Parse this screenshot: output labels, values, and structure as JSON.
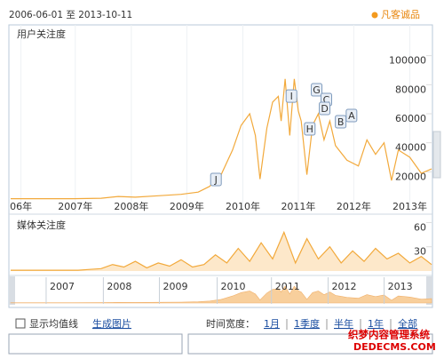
{
  "header": {
    "date_range": "2006-06-01 至 2013-10-11",
    "legend": "凡客诚品"
  },
  "chart_data": [
    {
      "type": "line",
      "title": "用户关注度",
      "color": "#f2a93b",
      "grid": true,
      "x": [
        2006.42,
        2007.0,
        2007.5,
        2008.0,
        2008.3,
        2008.6,
        2009.0,
        2009.4,
        2009.7,
        2009.9,
        2010.1,
        2010.3,
        2010.45,
        2010.6,
        2010.7,
        2010.78,
        2010.9,
        2011.0,
        2011.1,
        2011.15,
        2011.22,
        2011.3,
        2011.38,
        2011.45,
        2011.5,
        2011.6,
        2011.7,
        2011.8,
        2011.9,
        2012.0,
        2012.1,
        2012.3,
        2012.5,
        2012.65,
        2012.8,
        2012.95,
        2013.08,
        2013.2,
        2013.4,
        2013.6,
        2013.78
      ],
      "values": [
        1500,
        1500,
        1500,
        1800,
        3000,
        2500,
        3500,
        4500,
        6000,
        10000,
        18000,
        35000,
        52000,
        60000,
        45000,
        15000,
        50000,
        68000,
        72000,
        55000,
        84000,
        45000,
        84000,
        62000,
        55000,
        18000,
        52000,
        60000,
        42000,
        55000,
        38000,
        28000,
        24000,
        42000,
        32000,
        40000,
        14000,
        35000,
        30000,
        19000,
        22000
      ],
      "xlim": [
        2006.42,
        2013.78
      ],
      "ylim": [
        0,
        120000
      ],
      "xticks": [
        {
          "value": 2006.6,
          "label": "06年"
        },
        {
          "value": 2007.55,
          "label": "2007年"
        },
        {
          "value": 2008.53,
          "label": "2008年"
        },
        {
          "value": 2009.5,
          "label": "2009年"
        },
        {
          "value": 2010.48,
          "label": "2010年"
        },
        {
          "value": 2011.45,
          "label": "2011年"
        },
        {
          "value": 2012.42,
          "label": "2012年"
        },
        {
          "value": 2013.4,
          "label": "2013年"
        }
      ],
      "yticks": [
        20000,
        40000,
        60000,
        80000,
        100000
      ],
      "annotations": [
        {
          "label": "J",
          "x": 2010.01,
          "y": 14700
        },
        {
          "label": "I",
          "x": 2011.33,
          "y": 72200
        },
        {
          "label": "G",
          "x": 2011.77,
          "y": 76500
        },
        {
          "label": "C",
          "x": 2011.94,
          "y": 69800
        },
        {
          "label": "D",
          "x": 2011.91,
          "y": 63700
        },
        {
          "label": "H",
          "x": 2011.65,
          "y": 49600
        },
        {
          "label": "B",
          "x": 2012.19,
          "y": 54500
        },
        {
          "label": "A",
          "x": 2012.38,
          "y": 58800
        }
      ]
    },
    {
      "type": "line",
      "title": "媒体关注度",
      "color": "#f2a93b",
      "x": [
        2006.42,
        2006.6,
        2006.8,
        2007.0,
        2007.2,
        2007.4,
        2007.6,
        2007.8,
        2008.0,
        2008.2,
        2008.4,
        2008.6,
        2008.8,
        2009.0,
        2009.2,
        2009.4,
        2009.6,
        2009.8,
        2010.0,
        2010.2,
        2010.4,
        2010.6,
        2010.8,
        2011.0,
        2011.2,
        2011.4,
        2011.6,
        2011.8,
        2012.0,
        2012.2,
        2012.4,
        2012.6,
        2012.8,
        2013.0,
        2013.2,
        2013.4,
        2013.6,
        2013.78
      ],
      "values": [
        1,
        1,
        1,
        1,
        1,
        1,
        1,
        2,
        3,
        8,
        5,
        12,
        4,
        10,
        6,
        14,
        5,
        8,
        20,
        10,
        28,
        12,
        35,
        15,
        48,
        10,
        40,
        15,
        30,
        10,
        25,
        12,
        28,
        15,
        22,
        10,
        18,
        8
      ],
      "xlim": [
        2006.42,
        2013.78
      ],
      "ylim": [
        0,
        66
      ],
      "yticks": [
        30,
        60
      ]
    },
    {
      "type": "navigator",
      "xlim": [
        2006.42,
        2013.78
      ],
      "xticks": [
        {
          "value": 2007.32,
          "label": "2007"
        },
        {
          "value": 2008.32,
          "label": "2008"
        },
        {
          "value": 2009.3,
          "label": "2009"
        },
        {
          "value": 2010.31,
          "label": "2010"
        },
        {
          "value": 2011.26,
          "label": "2011"
        },
        {
          "value": 2012.25,
          "label": "2012"
        },
        {
          "value": 2013.23,
          "label": "2013"
        }
      ]
    }
  ],
  "controls": {
    "checkbox": "显示均值线",
    "link": "生成图片",
    "span_label": "时间宽度：",
    "spans": [
      "1月",
      "1季度",
      "半年",
      "1年",
      "全部"
    ]
  },
  "watermark": {
    "line1": "织梦内容管理系统",
    "line2": "DEDECMS.COM"
  }
}
